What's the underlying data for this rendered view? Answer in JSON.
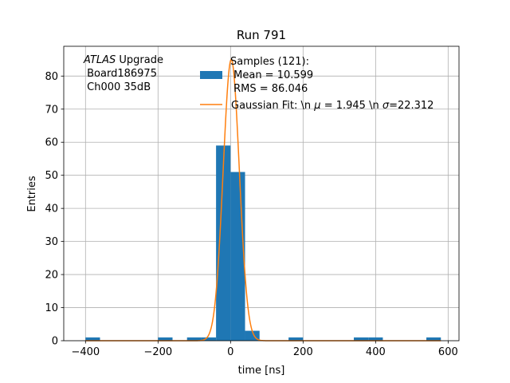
{
  "chart_data": {
    "type": "bar",
    "title": "Run 791",
    "xlabel": "time [ns]",
    "ylabel": "Entries",
    "xlim": [
      -460,
      630
    ],
    "ylim": [
      0,
      89
    ],
    "grid": true,
    "legend_position": "top-center",
    "x_ticks": [
      -400,
      -200,
      0,
      200,
      400,
      600
    ],
    "x_tick_labels": [
      "−400",
      "−200",
      "0",
      "200",
      "400",
      "600"
    ],
    "y_ticks": [
      0,
      10,
      20,
      30,
      40,
      50,
      60,
      70,
      80
    ],
    "y_tick_labels": [
      "0",
      "10",
      "20",
      "30",
      "40",
      "50",
      "60",
      "70",
      "80"
    ],
    "histogram": {
      "name": "Samples (121):\n Mean = 10.599\n RMS = 86.046",
      "color": "#1f77b4",
      "bins": [
        {
          "x0": -400,
          "x1": -360,
          "count": 1
        },
        {
          "x0": -200,
          "x1": -160,
          "count": 1
        },
        {
          "x0": -120,
          "x1": -80,
          "count": 1
        },
        {
          "x0": -80,
          "x1": -40,
          "count": 1
        },
        {
          "x0": -40,
          "x1": 0,
          "count": 59
        },
        {
          "x0": 0,
          "x1": 40,
          "count": 51
        },
        {
          "x0": 40,
          "x1": 80,
          "count": 3
        },
        {
          "x0": 160,
          "x1": 200,
          "count": 1
        },
        {
          "x0": 340,
          "x1": 380,
          "count": 1
        },
        {
          "x0": 380,
          "x1": 420,
          "count": 1
        },
        {
          "x0": 540,
          "x1": 580,
          "count": 1
        }
      ]
    },
    "fit": {
      "name": "Gaussian Fit: \\n $\\mu$ = 1.945 \\n $\\sigma$=22.312",
      "color": "#ff7f0e",
      "amplitude": 85,
      "mu": 1.945,
      "sigma": 22.312,
      "x_range": [
        -400,
        580
      ]
    },
    "annotation": {
      "line1_italic": "ATLAS",
      "line1_rest": " Upgrade",
      "line2": " Board186975",
      "line3": " Ch000 35dB"
    },
    "legend": {
      "samples_lines": [
        "Samples (121):",
        " Mean = 10.599",
        " RMS = 86.046"
      ],
      "fit_prefix": "Gaussian Fit: \\n ",
      "fit_mu_symbol": "μ",
      "fit_mid": " = 1.945 \\n ",
      "fit_sigma_symbol": "σ",
      "fit_suffix": "=22.312"
    }
  }
}
